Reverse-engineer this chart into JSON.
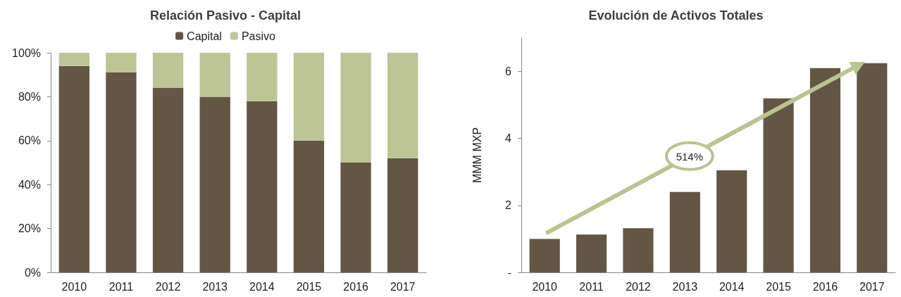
{
  "chart_data": [
    {
      "type": "bar",
      "title": "Relación Pasivo - Capital",
      "categories": [
        "2010",
        "2011",
        "2012",
        "2013",
        "2014",
        "2015",
        "2016",
        "2017"
      ],
      "stacked": true,
      "series": [
        {
          "name": "Capital",
          "color": "#635645",
          "values": [
            94,
            91,
            84,
            80,
            78,
            60,
            50,
            52
          ]
        },
        {
          "name": "Pasivo",
          "color": "#bdc495",
          "values": [
            6,
            9,
            16,
            20,
            22,
            40,
            50,
            48
          ]
        }
      ],
      "ylim": [
        0,
        100
      ],
      "yticks": [
        {
          "value": 0,
          "label": "0%"
        },
        {
          "value": 20,
          "label": "20%"
        },
        {
          "value": 40,
          "label": "40%"
        },
        {
          "value": 60,
          "label": "60%"
        },
        {
          "value": 80,
          "label": "80%"
        },
        {
          "value": 100,
          "label": "100%"
        }
      ],
      "grid": false,
      "legend": "top"
    },
    {
      "type": "bar",
      "title": "Evolución de Activos Totales",
      "ylabel": "MMM MXP",
      "categories": [
        "2010",
        "2011",
        "2012",
        "2013",
        "2014",
        "2015",
        "2016",
        "2017"
      ],
      "series": [
        {
          "color": "#635645",
          "values": [
            1.0,
            1.13,
            1.32,
            2.4,
            3.05,
            5.2,
            6.1,
            6.25
          ]
        }
      ],
      "ylim": [
        0,
        7
      ],
      "yticks": [
        {
          "value": 0,
          "label": "-"
        },
        2,
        4,
        6
      ],
      "grid": false,
      "legend": false,
      "annotations": [
        "514%"
      ]
    }
  ]
}
